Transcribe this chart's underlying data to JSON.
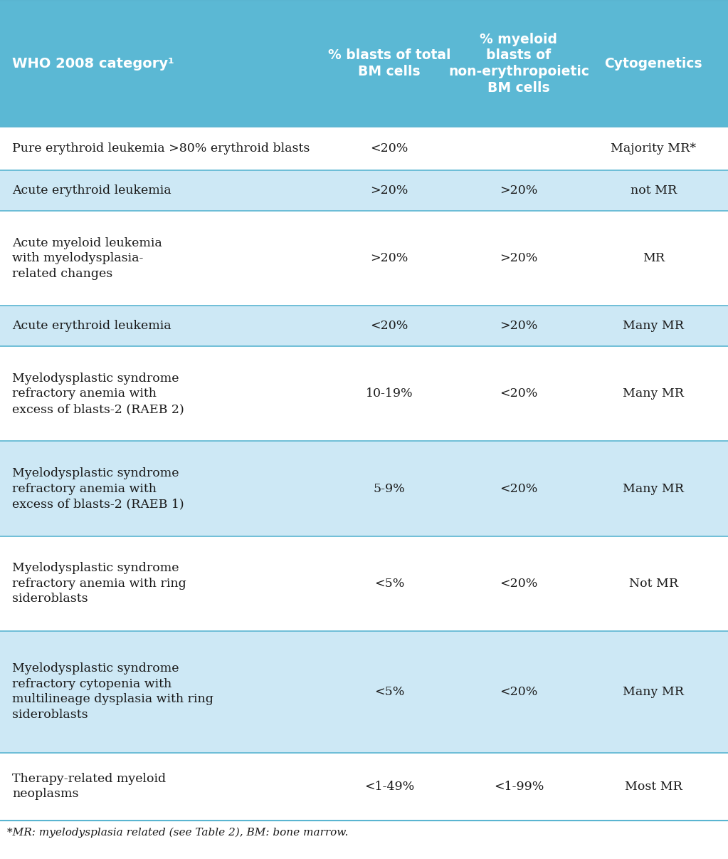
{
  "header_bg": "#5bb8d4",
  "row_bg_light": "#cde8f5",
  "row_bg_white": "#ffffff",
  "header_text_color": "#ffffff",
  "body_text_color": "#1a1a1a",
  "footnote_text_color": "#1a1a1a",
  "col_headers": [
    "WHO 2008 category¹",
    "% blasts of total\nBM cells",
    "% myeloid\nblasts of\nnon-erythropoietic\nBM cells",
    "Cytogenetics"
  ],
  "rows": [
    {
      "col1": "Pure erythroid leukemia >80% erythroid blasts",
      "col2": "<20%",
      "col3": "",
      "col4": "Majority MR*",
      "bg": "#ffffff",
      "span_col1_col2": true
    },
    {
      "col1": "Acute erythroid leukemia",
      "col2": ">20%",
      "col3": ">20%",
      "col4": "not MR",
      "bg": "#cde8f5",
      "span_col1_col2": false
    },
    {
      "col1": "Acute myeloid leukemia\nwith myelodysplasia-\nrelated changes",
      "col2": ">20%",
      "col3": ">20%",
      "col4": "MR",
      "bg": "#ffffff",
      "span_col1_col2": false
    },
    {
      "col1": "Acute erythroid leukemia",
      "col2": "<20%",
      "col3": ">20%",
      "col4": "Many MR",
      "bg": "#cde8f5",
      "span_col1_col2": false
    },
    {
      "col1": "Myelodysplastic syndrome\nrefractory anemia with\nexcess of blasts-2 (RAEB 2)",
      "col2": "10-19%",
      "col3": "<20%",
      "col4": "Many MR",
      "bg": "#ffffff",
      "span_col1_col2": false
    },
    {
      "col1": "Myelodysplastic syndrome\nrefractory anemia with\nexcess of blasts-2 (RAEB 1)",
      "col2": "5-9%",
      "col3": "<20%",
      "col4": "Many MR",
      "bg": "#cde8f5",
      "span_col1_col2": false
    },
    {
      "col1": "Myelodysplastic syndrome\nrefractory anemia with ring\nsideroblasts",
      "col2": "<5%",
      "col3": "<20%",
      "col4": "Not MR",
      "bg": "#ffffff",
      "span_col1_col2": false
    },
    {
      "col1": "Myelodysplastic syndrome\nrefractory cytopenia with\nmultilineage dysplasia with ring\nsideroblasts",
      "col2": "<5%",
      "col3": "<20%",
      "col4": "Many MR",
      "bg": "#cde8f5",
      "span_col1_col2": false
    },
    {
      "col1": "Therapy-related myeloid\nneoplasms",
      "col2": "<1-49%",
      "col3": "<1-99%",
      "col4": "Most MR",
      "bg": "#ffffff",
      "span_col1_col2": false
    }
  ],
  "footnote": "*MR: myelodysplasia related (see Table 2), BM: bone marrow.",
  "figure_width": 10.23,
  "figure_height": 12.06,
  "dpi": 100
}
